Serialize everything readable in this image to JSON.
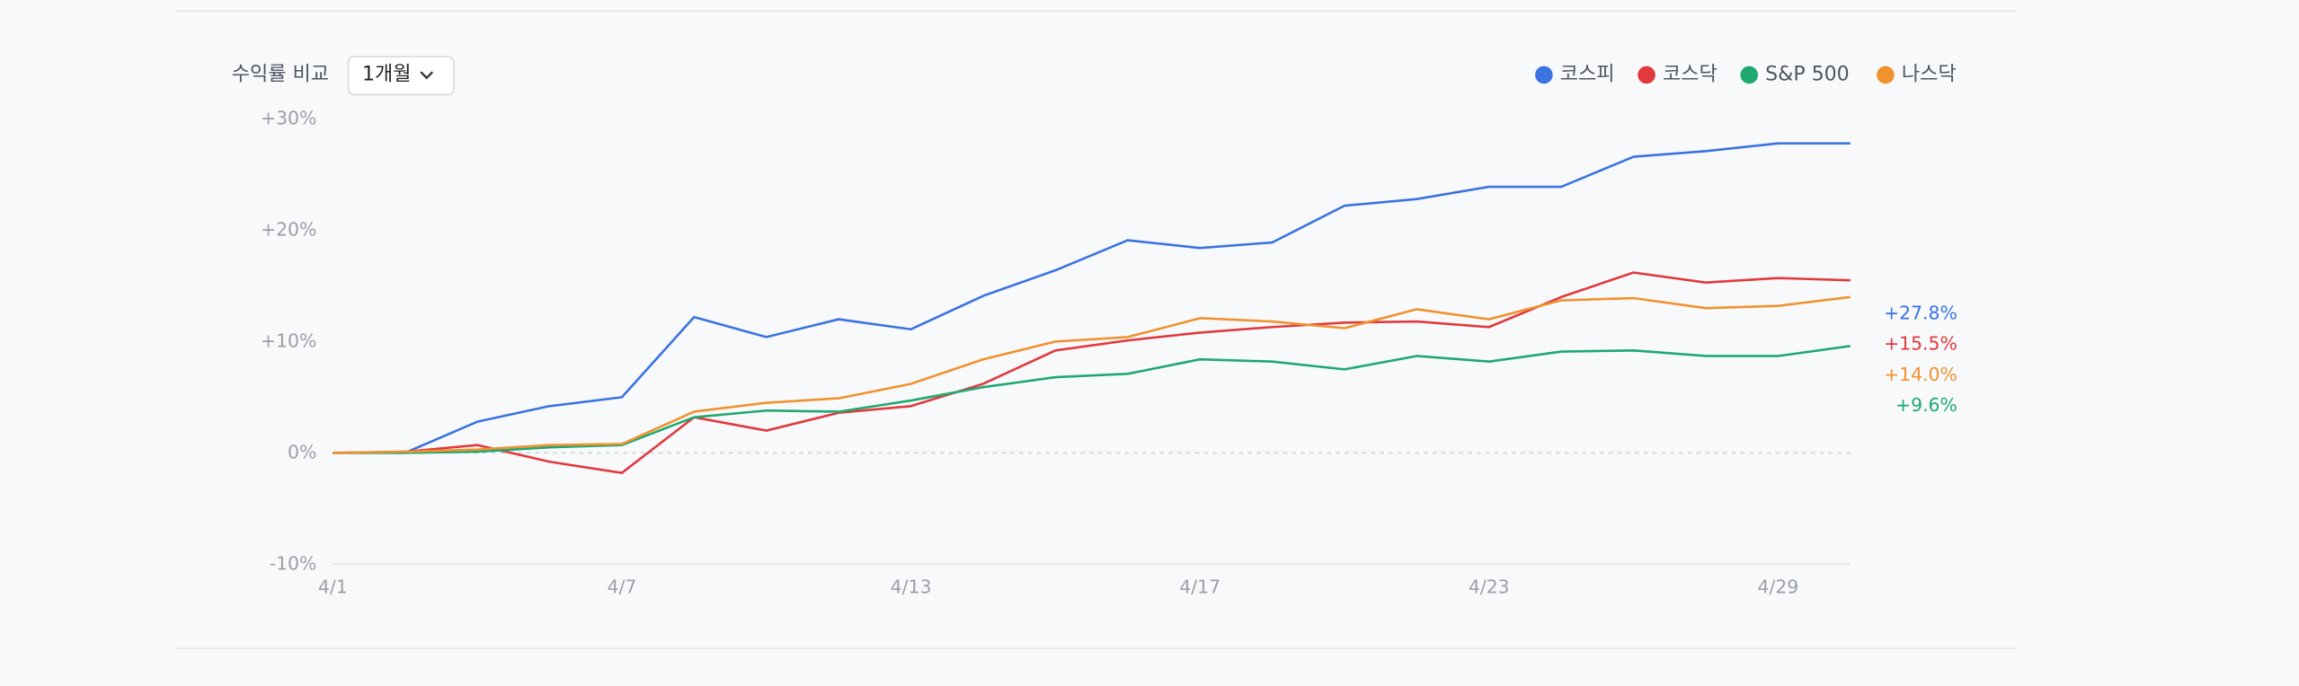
{
  "header": {
    "title": "수익률 비교",
    "period": "1개월"
  },
  "chart_data": {
    "type": "line",
    "categories": [
      "4/1",
      null,
      null,
      null,
      "4/7",
      null,
      null,
      null,
      "4/13",
      null,
      null,
      null,
      "4/17",
      null,
      null,
      null,
      "4/23",
      null,
      null,
      null,
      "4/29",
      null
    ],
    "series": [
      {
        "name": "코스피",
        "color": "#3b73e0",
        "end_label": "+27.8%",
        "values": [
          0,
          0,
          2.8,
          4.2,
          5.0,
          12.2,
          10.4,
          12.0,
          11.1,
          14.1,
          16.4,
          19.1,
          18.4,
          18.9,
          22.2,
          22.8,
          23.9,
          23.9,
          26.6,
          27.1,
          27.8,
          27.8
        ]
      },
      {
        "name": "코스닥",
        "color": "#e03a3e",
        "end_label": "+15.5%",
        "values": [
          0,
          0.1,
          0.7,
          -0.8,
          -1.8,
          3.2,
          2.0,
          3.6,
          4.2,
          6.2,
          9.2,
          10.1,
          10.8,
          11.3,
          11.7,
          11.8,
          11.3,
          14.0,
          16.2,
          15.3,
          15.7,
          15.5
        ]
      },
      {
        "name": "S&P 500",
        "color": "#1fa971",
        "end_label": "+9.6%",
        "values": [
          0,
          0,
          0.1,
          0.5,
          0.7,
          3.2,
          3.8,
          3.7,
          4.7,
          5.9,
          6.8,
          7.1,
          8.4,
          8.2,
          7.5,
          8.7,
          8.2,
          9.1,
          9.2,
          8.7,
          8.7,
          9.6
        ]
      },
      {
        "name": "나스닥",
        "color": "#f0922e",
        "end_label": "+14.0%",
        "values": [
          0,
          0.1,
          0.3,
          0.7,
          0.8,
          3.7,
          4.5,
          4.9,
          6.2,
          8.4,
          10.0,
          10.4,
          12.1,
          11.8,
          11.2,
          12.9,
          12.0,
          13.7,
          13.9,
          13.0,
          13.2,
          14.0
        ]
      }
    ],
    "ylim": [
      -10,
      30
    ],
    "yticks": [
      {
        "value": -10,
        "label": "-10%"
      },
      {
        "value": 0,
        "label": "0%"
      },
      {
        "value": 10,
        "label": "+10%"
      },
      {
        "value": 20,
        "label": "+20%"
      },
      {
        "value": 30,
        "label": "+30%"
      }
    ],
    "zero_line": true,
    "legend": "top-right"
  }
}
